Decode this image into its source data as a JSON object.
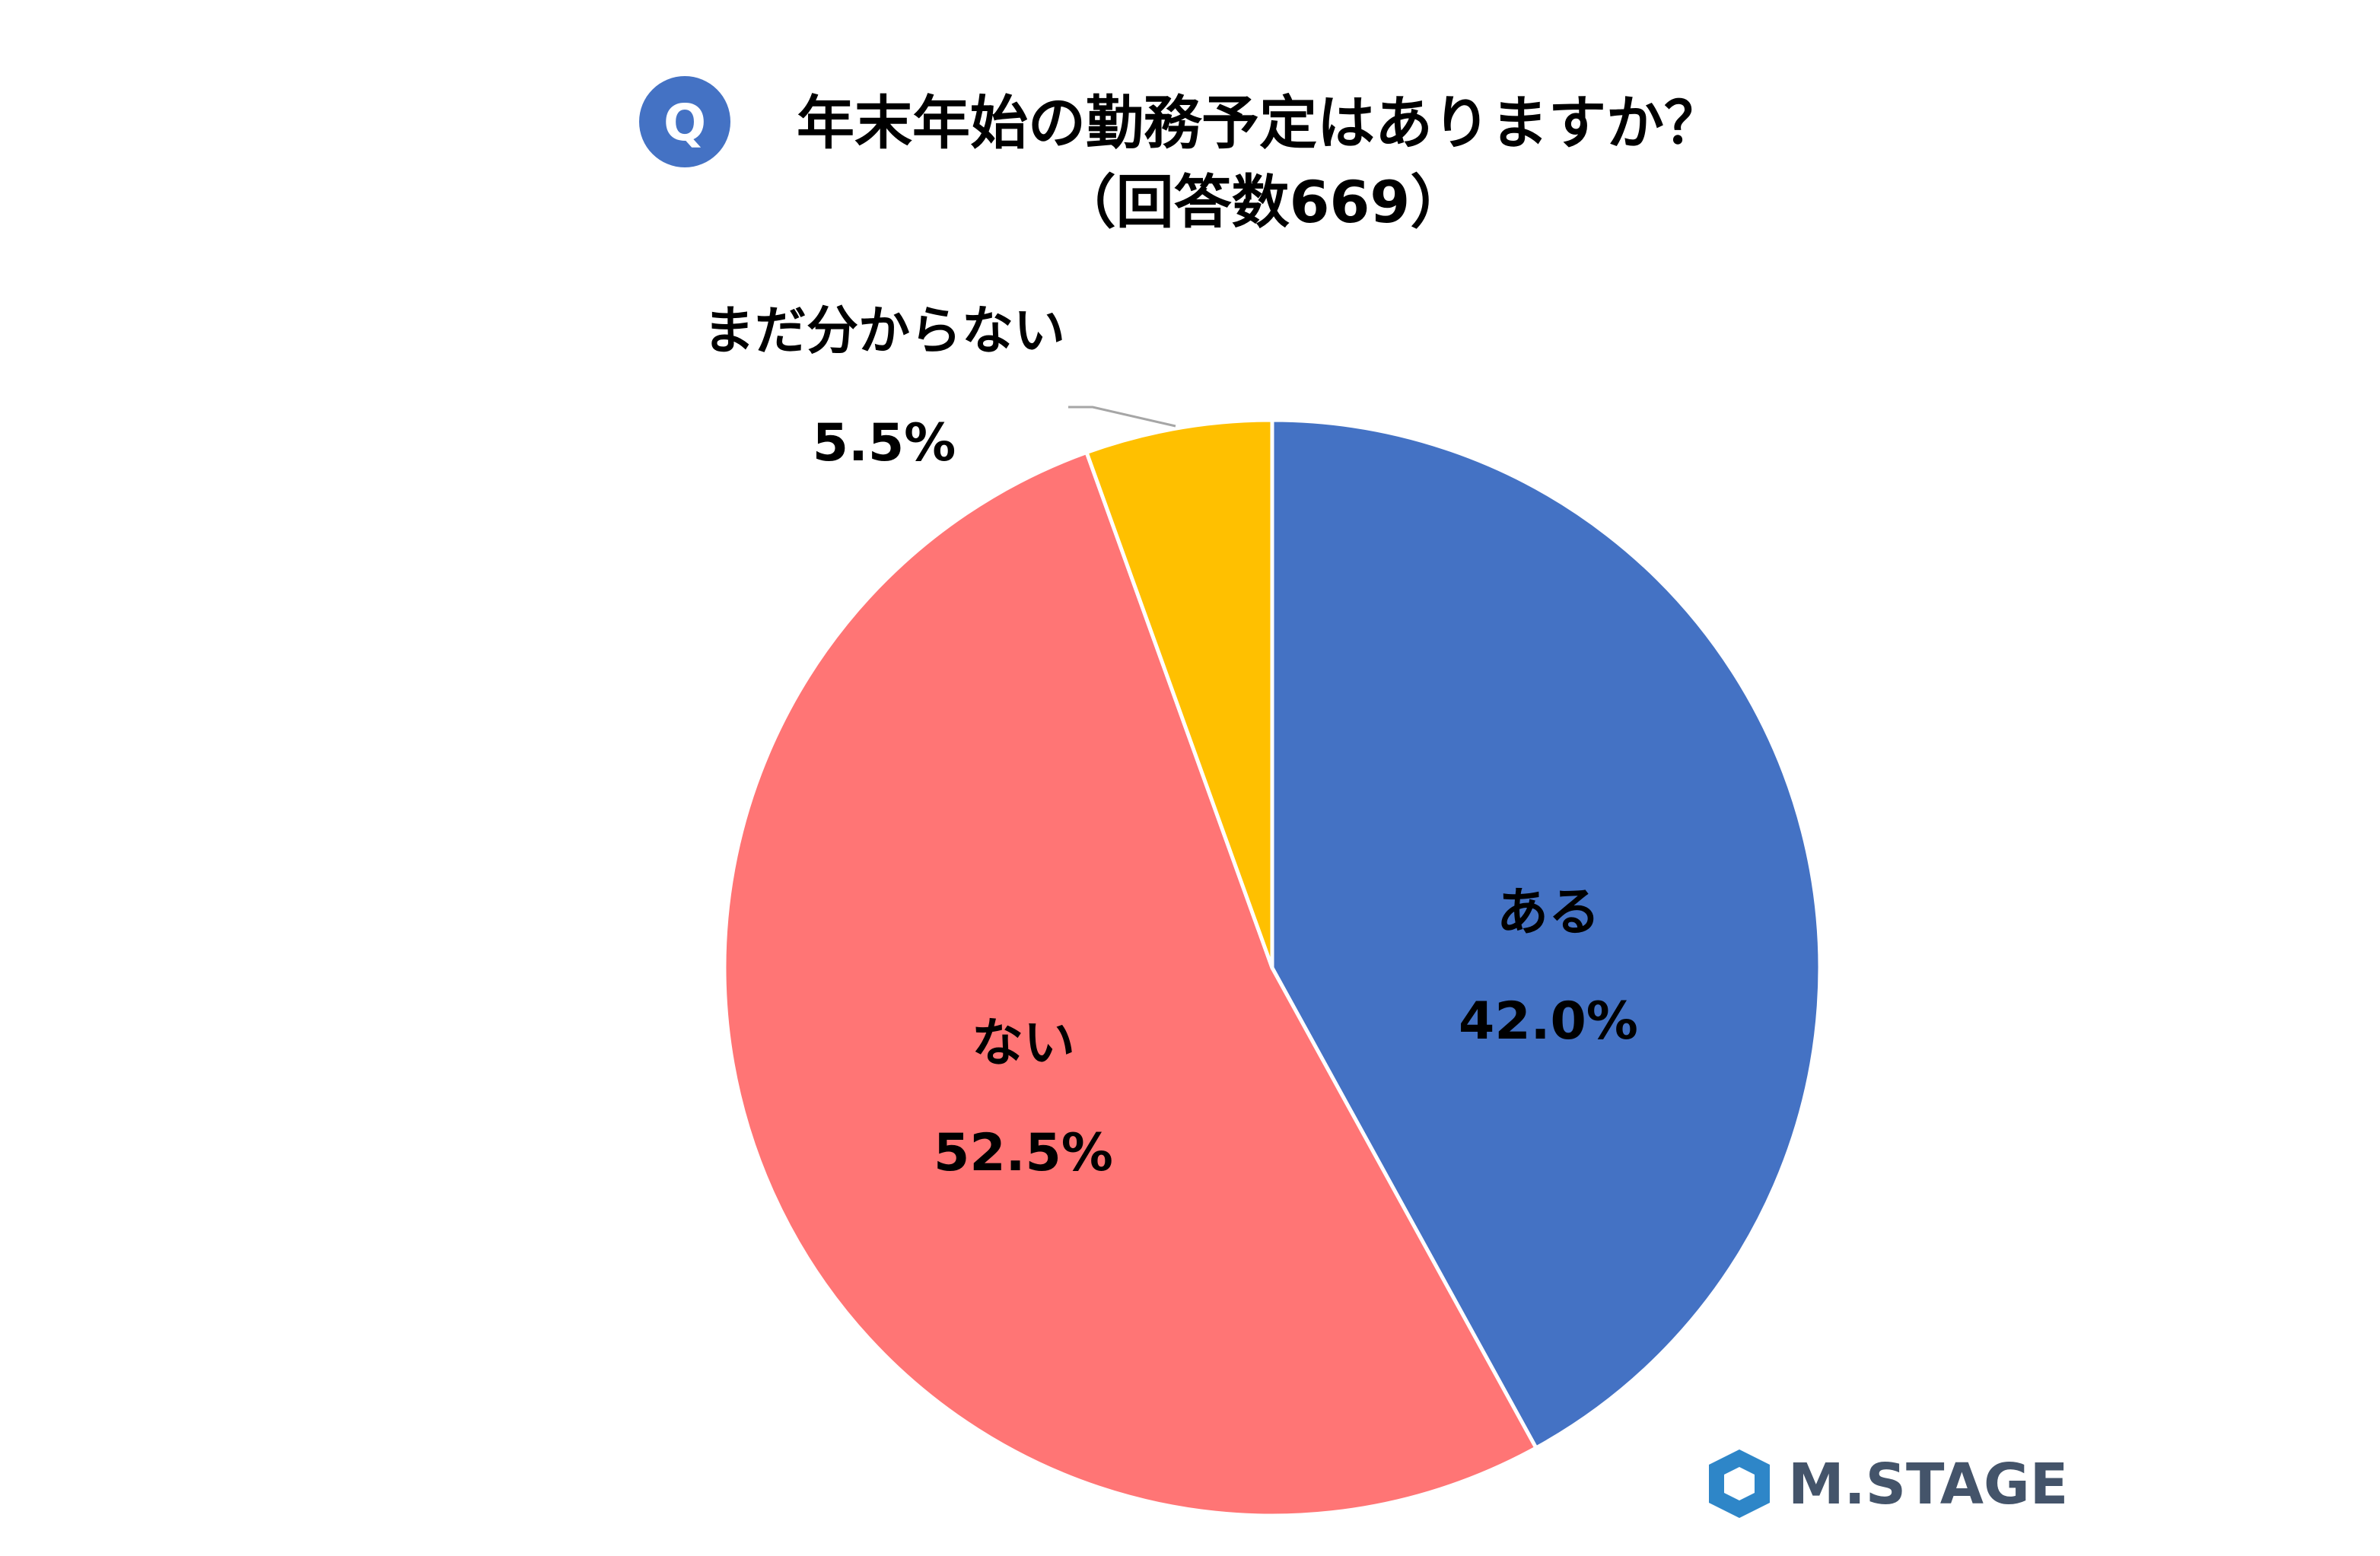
{
  "question_badge": "Q",
  "title_line1": "年末年始の勤務予定はありますか？",
  "title_line2": "（回答数669）",
  "brand": {
    "logo_text": "M.STAGE",
    "logo_color": "#44546a",
    "mark_color": "#2e86c8"
  },
  "chart_data": {
    "type": "pie",
    "start_angle_deg": 0,
    "direction": "clockwise",
    "slices": [
      {
        "label": "ある",
        "value": 42.0,
        "value_label": "42.0%",
        "color": "#4472c4"
      },
      {
        "label": "ない",
        "value": 52.5,
        "value_label": "52.5%",
        "color": "#ff7575"
      },
      {
        "label": "まだ分からない",
        "value": 5.5,
        "value_label": "5.5%",
        "color": "#ffc000"
      }
    ]
  },
  "colors": {
    "badge": "#4472c4",
    "leader_line": "#a6a6a6",
    "slice_border": "#ffffff"
  }
}
